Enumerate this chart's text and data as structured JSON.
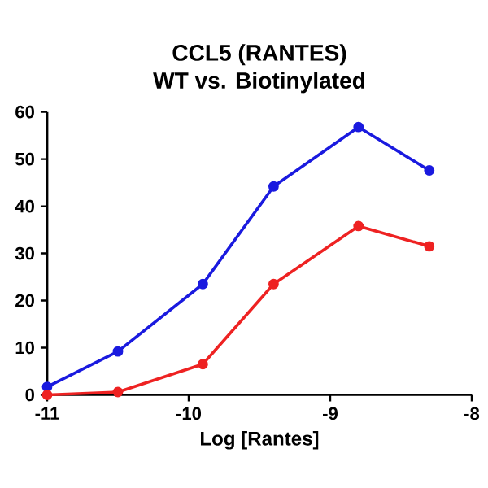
{
  "chart_data": {
    "type": "line",
    "title": "CCL5 (RANTES)",
    "subtitle": "WT vs. Biotinylated",
    "xlabel": "Log [Rantes]",
    "xlim": [
      -11,
      -8
    ],
    "xticks": [
      -11,
      -10,
      -9,
      -8
    ],
    "ylim": [
      0,
      60
    ],
    "yticks": [
      0,
      10,
      20,
      30,
      40,
      50,
      60
    ],
    "marker": "circle",
    "line_style": "solid",
    "grid": false,
    "series": [
      {
        "color": "#1a1adf",
        "x": [
          -11,
          -10.5,
          -9.9,
          -9.4,
          -8.8,
          -8.3
        ],
        "values": [
          1.7,
          9.2,
          23.5,
          44.2,
          56.8,
          47.6
        ]
      },
      {
        "color": "#ee2222",
        "x": [
          -11,
          -10.5,
          -9.9,
          -9.4,
          -8.8,
          -8.3
        ],
        "values": [
          0,
          0.6,
          6.5,
          23.5,
          35.8,
          31.5
        ]
      }
    ]
  }
}
